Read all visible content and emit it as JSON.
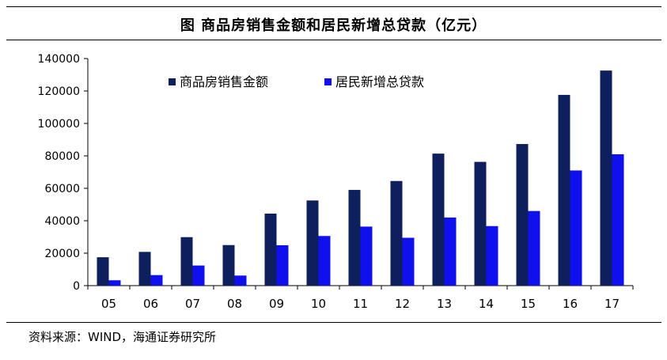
{
  "header": {
    "title": "图 商品房销售金额和居民新增总贷款（亿元）"
  },
  "footer": {
    "source": "资料来源：WIND，海通证券研究所"
  },
  "colors": {
    "series1": "#0d1f5c",
    "series2": "#1010ee"
  },
  "chart_data": {
    "type": "bar",
    "title": "图 商品房销售金额和居民新增总贷款（亿元）",
    "xlabel": "",
    "ylabel": "",
    "categories": [
      "05",
      "06",
      "07",
      "08",
      "09",
      "10",
      "11",
      "12",
      "13",
      "14",
      "15",
      "16",
      "17"
    ],
    "series": [
      {
        "name": "商品房销售金额",
        "values": [
          17500,
          20800,
          29900,
          25000,
          44400,
          52500,
          59000,
          64500,
          81400,
          76300,
          87300,
          117600,
          132600
        ]
      },
      {
        "name": "居民新增总贷款",
        "values": [
          3300,
          6500,
          12400,
          6200,
          24900,
          30600,
          36400,
          29500,
          42000,
          36700,
          46000,
          71000,
          81000
        ]
      }
    ],
    "ylim": [
      0,
      140000
    ],
    "yticks": [
      "140000",
      "120000",
      "100000",
      "80000",
      "60000",
      "40000",
      "20000",
      "0"
    ],
    "grid": false,
    "legend": "top-left"
  }
}
